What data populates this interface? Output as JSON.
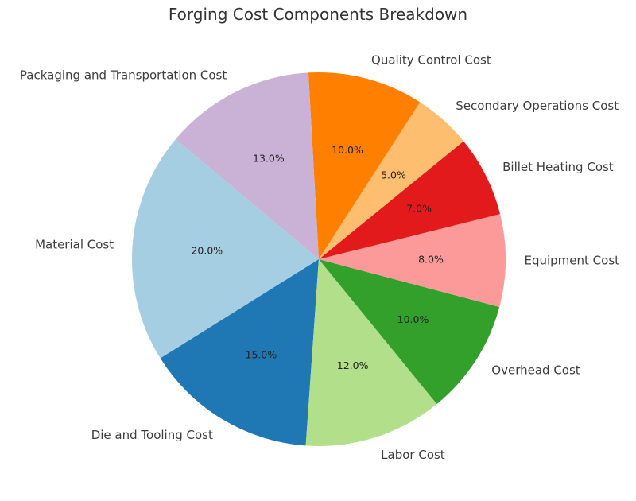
{
  "chart_data": {
    "type": "pie",
    "title": "Forging Cost Components Breakdown",
    "categories": [
      "Material Cost",
      "Die and Tooling Cost",
      "Labor Cost",
      "Overhead Cost",
      "Equipment Cost",
      "Billet Heating Cost",
      "Secondary Operations Cost",
      "Quality Control Cost",
      "Packaging and Transportation Cost"
    ],
    "values": [
      20,
      15,
      12,
      10,
      8,
      7,
      5,
      10,
      13
    ],
    "percent_labels": [
      "20.0%",
      "15.0%",
      "12.0%",
      "10.0%",
      "8.0%",
      "7.0%",
      "5.0%",
      "10.0%",
      "13.0%"
    ],
    "colors": [
      "#a6cee3",
      "#1f78b4",
      "#b2df8a",
      "#33a02c",
      "#fb9a99",
      "#e31a1c",
      "#fdbf6f",
      "#ff7f00",
      "#cab2d6"
    ],
    "start_angle_deg": 140,
    "direction": "counterclockwise",
    "legend": "none"
  }
}
